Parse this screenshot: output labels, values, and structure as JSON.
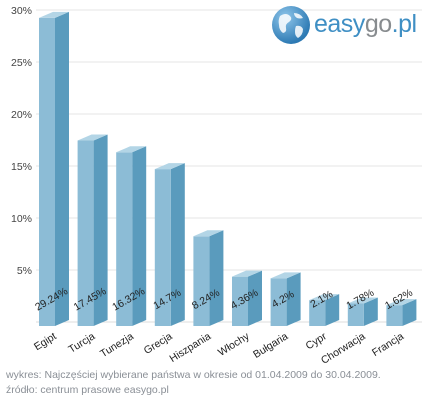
{
  "logo": {
    "text_main": "easy",
    "text_go": "go",
    "text_tld": ".pl",
    "icon": "globe-icon"
  },
  "chart_data": {
    "type": "bar",
    "categories": [
      "Egipt",
      "Turcja",
      "Tunezja",
      "Grecja",
      "Hiszpania",
      "Włochy",
      "Bułgaria",
      "Cypr",
      "Chorwacja",
      "Francja"
    ],
    "values": [
      29.24,
      17.45,
      16.32,
      14.7,
      8.24,
      4.36,
      4.2,
      2.1,
      1.78,
      1.62
    ],
    "value_labels": [
      "29.24%",
      "17.45%",
      "16.32%",
      "14.7%",
      "8.24%",
      "4.36%",
      "4.2%",
      "2.1%",
      "1.78%",
      "1.62%"
    ],
    "y_ticks": [
      "30%",
      "25%",
      "20%",
      "15%",
      "10%",
      "5%"
    ],
    "y_tick_values": [
      30,
      25,
      20,
      15,
      10,
      5
    ],
    "ylim": [
      0,
      30
    ],
    "grid": true,
    "bar_colors": {
      "front": "#8cbcd6",
      "side": "#5a9bbd",
      "top": "#b3d5e6"
    }
  },
  "footer": {
    "line1": "wykres: Najczęściej wybierane państwa w okresie od 01.04.2009 do 30.04.2009.",
    "line2": "źródło: centrum prasowe easygo.pl"
  }
}
